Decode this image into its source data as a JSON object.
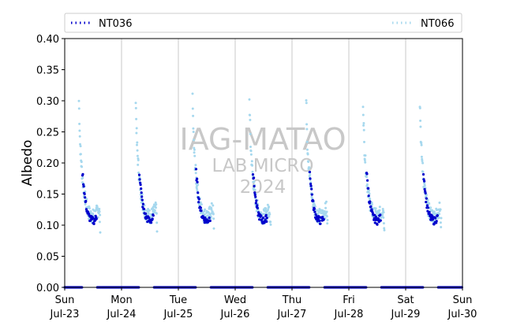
{
  "chart_data": {
    "type": "scatter",
    "ylabel": "Albedo",
    "xlabel": "",
    "ylim": [
      0,
      0.4
    ],
    "yticks": [
      "0.00",
      "0.05",
      "0.10",
      "0.15",
      "0.20",
      "0.25",
      "0.30",
      "0.35",
      "0.40"
    ],
    "xlim": [
      "2023-07-23T00:00",
      "2023-07-30T00:00"
    ],
    "xticks": [
      {
        "day": "Sun",
        "date": "Jul-23"
      },
      {
        "day": "Mon",
        "date": "Jul-24"
      },
      {
        "day": "Tue",
        "date": "Jul-25"
      },
      {
        "day": "Wed",
        "date": "Jul-26"
      },
      {
        "day": "Thu",
        "date": "Jul-27"
      },
      {
        "day": "Fri",
        "date": "Jul-28"
      },
      {
        "day": "Sat",
        "date": "Jul-29"
      },
      {
        "day": "Sun",
        "date": "Jul-30"
      }
    ],
    "vertical_gridlines": "at each midnight",
    "legend_position": "top, above plot",
    "watermark": [
      "IAG-MATAO",
      "LAB MICRO",
      "2024"
    ],
    "series": [
      {
        "name": "NT036",
        "color": "#0000cc",
        "marker": "dot",
        "daily_profile": [
          {
            "hour": 7.5,
            "albedo": 0.185
          },
          {
            "hour": 8.0,
            "albedo": 0.165
          },
          {
            "hour": 8.5,
            "albedo": 0.145
          },
          {
            "hour": 9.0,
            "albedo": 0.132
          },
          {
            "hour": 9.5,
            "albedo": 0.122
          },
          {
            "hour": 10.0,
            "albedo": 0.116
          },
          {
            "hour": 10.5,
            "albedo": 0.112
          },
          {
            "hour": 11.0,
            "albedo": 0.11
          },
          {
            "hour": 11.5,
            "albedo": 0.108
          },
          {
            "hour": 12.0,
            "albedo": 0.107
          },
          {
            "hour": 12.5,
            "albedo": 0.108
          },
          {
            "hour": 13.0,
            "albedo": 0.11
          },
          {
            "hour": 13.5,
            "albedo": 0.113
          }
        ],
        "night_value": 0.0
      },
      {
        "name": "NT066",
        "color": "#a6d8ee",
        "marker": "dot",
        "daily_profile": [
          {
            "hour": 6.0,
            "albedo": 0.3
          },
          {
            "hour": 6.5,
            "albedo": 0.23
          },
          {
            "hour": 7.0,
            "albedo": 0.2
          },
          {
            "hour": 7.5,
            "albedo": 0.175
          },
          {
            "hour": 8.0,
            "albedo": 0.16
          },
          {
            "hour": 8.5,
            "albedo": 0.145
          },
          {
            "hour": 9.0,
            "albedo": 0.135
          },
          {
            "hour": 9.5,
            "albedo": 0.127
          },
          {
            "hour": 10.0,
            "albedo": 0.122
          },
          {
            "hour": 10.5,
            "albedo": 0.118
          },
          {
            "hour": 11.0,
            "albedo": 0.116
          },
          {
            "hour": 11.5,
            "albedo": 0.115
          },
          {
            "hour": 12.0,
            "albedo": 0.114
          },
          {
            "hour": 12.5,
            "albedo": 0.115
          },
          {
            "hour": 13.0,
            "albedo": 0.117
          },
          {
            "hour": 13.5,
            "albedo": 0.12
          },
          {
            "hour": 14.0,
            "albedo": 0.123
          },
          {
            "hour": 14.5,
            "albedo": 0.127
          },
          {
            "hour": 15.0,
            "albedo": 0.1
          }
        ],
        "night_value": 0.0
      }
    ]
  }
}
